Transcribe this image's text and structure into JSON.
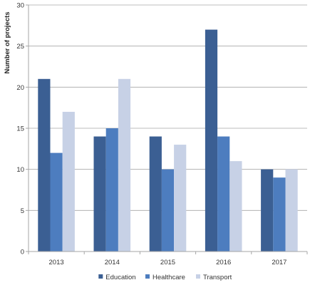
{
  "chart_data": {
    "type": "bar",
    "ylabel": "Number of projects",
    "xlabel": "",
    "categories": [
      "2013",
      "2014",
      "2015",
      "2016",
      "2017"
    ],
    "ylim": [
      0,
      30
    ],
    "yticks": [
      0,
      5,
      10,
      15,
      20,
      25,
      30
    ],
    "grid": "horizontal",
    "legend_position": "bottom",
    "series": [
      {
        "name": "Education",
        "color": "#3b5f93",
        "values": [
          21,
          14,
          14,
          27,
          10
        ]
      },
      {
        "name": "Healthcare",
        "color": "#4d7dbf",
        "values": [
          12,
          15,
          10,
          14,
          9
        ]
      },
      {
        "name": "Transport",
        "color": "#c7d1e6",
        "values": [
          17,
          21,
          13,
          11,
          10
        ]
      }
    ]
  }
}
